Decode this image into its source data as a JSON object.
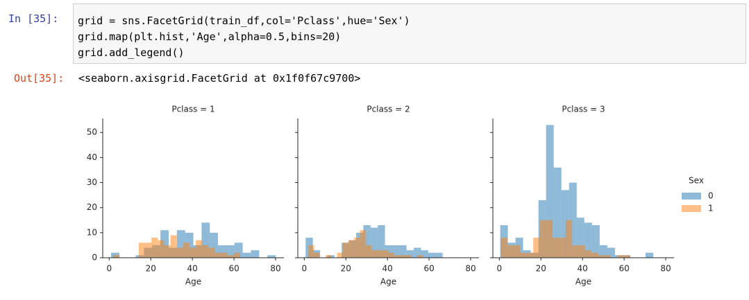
{
  "cell": {
    "in_prompt": "In [35]:",
    "code": [
      "grid = sns.FacetGrid(train_df,col='Pclass',hue='Sex')",
      "grid.map(plt.hist,'Age',alpha=0.5,bins=20)",
      "grid.add_legend()"
    ],
    "out_prompt": "Out[35]:",
    "output": "<seaborn.axisgrid.FacetGrid at 0x1f0f67c9700>"
  },
  "chart_data": [
    {
      "type": "histogram",
      "title": "Pclass = 1",
      "xlabel": "Age",
      "xlim": [
        -3.1,
        84
      ],
      "xticks": [
        0,
        20,
        40,
        60,
        80
      ],
      "ylim": [
        0,
        55.6
      ],
      "yticks": [
        0,
        10,
        20,
        30,
        40,
        50
      ],
      "legend_title": "Sex",
      "alpha": 0.5,
      "series": [
        {
          "name": "0",
          "color": "#1f77b4",
          "bins": [
            0.92,
            4.87,
            8.83,
            12.78,
            16.74,
            20.69,
            24.64,
            28.6,
            32.55,
            36.51,
            40.46,
            44.41,
            48.37,
            52.32,
            56.28,
            60.23,
            64.18,
            68.14,
            72.09,
            76.05,
            80
          ],
          "values": [
            2,
            0,
            0,
            1,
            4,
            5,
            11,
            4,
            11,
            10,
            5,
            14,
            10,
            5,
            5,
            6,
            2,
            3,
            0,
            1
          ]
        },
        {
          "name": "1",
          "color": "#ff7f0e",
          "bins": [
            2,
            5.05,
            8.1,
            11.15,
            14.2,
            17.25,
            20.3,
            23.35,
            26.4,
            29.45,
            32.5,
            35.55,
            38.6,
            41.65,
            44.7,
            47.75,
            50.8,
            53.85,
            56.9,
            59.95,
            63
          ],
          "values": [
            1,
            0,
            0,
            0,
            6,
            6,
            8,
            7,
            5,
            9,
            4,
            6,
            4,
            7,
            5,
            4,
            2,
            2,
            1,
            2
          ]
        }
      ]
    },
    {
      "type": "histogram",
      "title": "Pclass = 2",
      "xlabel": "Age",
      "xlim": [
        -3.1,
        84
      ],
      "xticks": [
        0,
        20,
        40,
        60,
        80
      ],
      "ylim": [
        0,
        55.6
      ],
      "alpha": 0.5,
      "series": [
        {
          "name": "0",
          "color": "#1f77b4",
          "bins": [
            0.67,
            4.14,
            7.6,
            11.07,
            14.54,
            18.0,
            21.47,
            24.94,
            28.4,
            31.87,
            35.34,
            38.8,
            42.27,
            45.74,
            49.2,
            52.67,
            56.13,
            59.6,
            63.07,
            66.53,
            70
          ],
          "values": [
            8,
            3,
            0,
            1,
            0,
            6,
            7,
            10,
            13,
            12,
            13,
            5,
            5,
            5,
            3,
            4,
            3,
            2,
            2,
            0
          ]
        },
        {
          "name": "1",
          "color": "#ff7f0e",
          "bins": [
            2,
            4.75,
            7.5,
            10.25,
            13,
            15.75,
            18.5,
            21.25,
            24,
            26.75,
            29.5,
            32.25,
            35,
            37.75,
            40.5,
            43.25,
            46,
            48.75,
            51.5,
            54.25,
            57
          ],
          "values": [
            5,
            2,
            0,
            1,
            0,
            2,
            6,
            7,
            8,
            11,
            5,
            3,
            3,
            3,
            2,
            1,
            1,
            1,
            0,
            1
          ]
        }
      ]
    },
    {
      "type": "histogram",
      "title": "Pclass = 3",
      "xlabel": "Age",
      "xlim": [
        -3.1,
        84
      ],
      "xticks": [
        0,
        20,
        40,
        60,
        80
      ],
      "ylim": [
        0,
        55.6
      ],
      "alpha": 0.5,
      "series": [
        {
          "name": "0",
          "color": "#1f77b4",
          "bins": [
            0.42,
            4.1,
            7.78,
            11.46,
            15.14,
            18.82,
            22.49,
            26.17,
            29.85,
            33.53,
            37.21,
            40.89,
            44.57,
            48.25,
            51.93,
            55.61,
            59.29,
            62.97,
            66.64,
            70.32,
            74
          ],
          "values": [
            13,
            6,
            8,
            3,
            2,
            23,
            53,
            36,
            27,
            30,
            16,
            14,
            13,
            5,
            4,
            1,
            1,
            0,
            0,
            2
          ]
        },
        {
          "name": "1",
          "color": "#ff7f0e",
          "bins": [
            0.75,
            3.86,
            6.98,
            10.09,
            13.2,
            16.31,
            19.43,
            22.54,
            25.65,
            28.76,
            31.88,
            34.99,
            38.1,
            41.21,
            44.33,
            47.44,
            50.55,
            53.66,
            56.78,
            59.89,
            63
          ],
          "values": [
            8,
            5,
            5,
            2,
            2,
            8,
            15,
            15,
            8,
            8,
            15,
            5,
            5,
            3,
            2,
            1,
            1,
            0,
            1,
            1
          ]
        }
      ]
    }
  ]
}
